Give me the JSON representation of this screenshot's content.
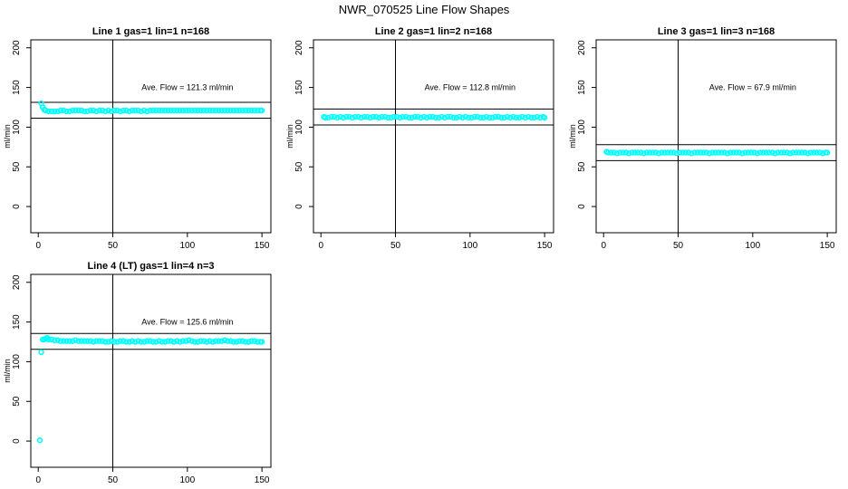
{
  "title": "NWR_070525  Line Flow Shapes",
  "colors": {
    "points": "#00ffff",
    "lines": "#000000"
  },
  "chart_data": [
    {
      "type": "scatter",
      "title": "Line 1 gas=1 lin=1 n=168",
      "ylabel": "ml/min",
      "xlim": [
        -5,
        156
      ],
      "ylim": [
        -33,
        210
      ],
      "xticks": [
        0,
        50,
        100,
        150
      ],
      "yticks": [
        0,
        50,
        100,
        150,
        200
      ],
      "annotation": "Ave. Flow =  121.3  ml/min",
      "hlines": [
        131.3,
        111.3
      ],
      "vline": 50,
      "x": [
        2,
        3,
        4,
        5,
        7,
        9,
        11,
        13,
        15,
        17,
        19,
        21,
        23,
        25,
        27,
        29,
        31,
        33,
        35,
        37,
        39,
        41,
        43,
        45,
        47,
        49,
        51,
        53,
        55,
        57,
        59,
        61,
        63,
        65,
        67,
        69,
        71,
        73,
        75,
        77,
        79,
        81,
        83,
        85,
        87,
        89,
        91,
        93,
        95,
        97,
        99,
        101,
        103,
        105,
        107,
        109,
        111,
        113,
        115,
        117,
        119,
        121,
        123,
        125,
        127,
        129,
        131,
        133,
        135,
        137,
        139,
        141,
        143,
        145,
        147,
        149,
        150
      ],
      "y": [
        130,
        125,
        122,
        121,
        120,
        120,
        120,
        120,
        121,
        121,
        120,
        120,
        121,
        121,
        121,
        121,
        120,
        120,
        121,
        121,
        120,
        121,
        121,
        120,
        121,
        120,
        121,
        121,
        120,
        121,
        121,
        120,
        121,
        121,
        121,
        120,
        121,
        120,
        121,
        121,
        121,
        121,
        121,
        121,
        121,
        121,
        121,
        121,
        121,
        121,
        121,
        121,
        121,
        121,
        121,
        121,
        121,
        121,
        121,
        121,
        121,
        121,
        121,
        121,
        121,
        121,
        121,
        121,
        121,
        121,
        121,
        121,
        121,
        121,
        121,
        121,
        121
      ]
    },
    {
      "type": "scatter",
      "title": "Line 2 gas=1 lin=2 n=168",
      "ylabel": "ml/min",
      "xlim": [
        -5,
        156
      ],
      "ylim": [
        -33,
        210
      ],
      "xticks": [
        0,
        50,
        100,
        150
      ],
      "yticks": [
        0,
        50,
        100,
        150,
        200
      ],
      "annotation": "Ave. Flow =  112.8  ml/min",
      "hlines": [
        122.8,
        102.8
      ],
      "vline": 50,
      "x": [
        2,
        3,
        5,
        7,
        9,
        11,
        13,
        15,
        17,
        19,
        21,
        23,
        25,
        27,
        29,
        31,
        33,
        35,
        37,
        39,
        41,
        43,
        45,
        47,
        49,
        51,
        53,
        55,
        57,
        59,
        61,
        63,
        65,
        67,
        69,
        71,
        73,
        75,
        77,
        79,
        81,
        83,
        85,
        87,
        89,
        91,
        93,
        95,
        97,
        99,
        101,
        103,
        105,
        107,
        109,
        111,
        113,
        115,
        117,
        119,
        121,
        123,
        125,
        127,
        129,
        131,
        133,
        135,
        137,
        139,
        141,
        143,
        145,
        147,
        149,
        150
      ],
      "y": [
        113,
        112,
        112,
        113,
        113,
        112,
        113,
        112,
        113,
        113,
        112,
        113,
        113,
        112,
        113,
        113,
        112,
        113,
        113,
        112,
        113,
        113,
        112,
        112,
        113,
        113,
        112,
        113,
        113,
        112,
        112,
        113,
        113,
        112,
        113,
        112,
        113,
        113,
        112,
        112,
        113,
        112,
        113,
        113,
        112,
        112,
        113,
        112,
        113,
        112,
        112,
        113,
        113,
        112,
        112,
        113,
        112,
        112,
        113,
        113,
        112,
        112,
        113,
        112,
        113,
        112,
        112,
        113,
        112,
        113,
        112,
        112,
        113,
        112,
        113,
        112
      ]
    },
    {
      "type": "scatter",
      "title": "Line 3 gas=1 lin=3 n=168",
      "ylabel": "ml/min",
      "xlim": [
        -5,
        156
      ],
      "ylim": [
        -33,
        210
      ],
      "xticks": [
        0,
        50,
        100,
        150
      ],
      "yticks": [
        0,
        50,
        100,
        150,
        200
      ],
      "annotation": "Ave. Flow =  67.9  ml/min",
      "hlines": [
        77.9,
        57.9
      ],
      "vline": 50,
      "x": [
        2,
        3,
        5,
        7,
        9,
        11,
        13,
        15,
        17,
        19,
        21,
        23,
        25,
        27,
        29,
        31,
        33,
        35,
        37,
        39,
        41,
        43,
        45,
        47,
        49,
        51,
        53,
        55,
        57,
        59,
        61,
        63,
        65,
        67,
        69,
        71,
        73,
        75,
        77,
        79,
        81,
        83,
        85,
        87,
        89,
        91,
        93,
        95,
        97,
        99,
        101,
        103,
        105,
        107,
        109,
        111,
        113,
        115,
        117,
        119,
        121,
        123,
        125,
        127,
        129,
        131,
        133,
        135,
        137,
        139,
        141,
        143,
        145,
        147,
        149,
        150
      ],
      "y": [
        69,
        68,
        68,
        68,
        67,
        68,
        68,
        68,
        67,
        68,
        68,
        68,
        68,
        67,
        68,
        68,
        68,
        68,
        67,
        68,
        68,
        68,
        68,
        68,
        67,
        68,
        68,
        68,
        68,
        67,
        68,
        68,
        68,
        68,
        68,
        67,
        68,
        68,
        68,
        68,
        68,
        67,
        68,
        68,
        68,
        68,
        67,
        68,
        68,
        68,
        68,
        67,
        68,
        68,
        68,
        68,
        68,
        67,
        68,
        68,
        68,
        68,
        67,
        68,
        68,
        68,
        68,
        68,
        67,
        68,
        68,
        68,
        68,
        67,
        68,
        68
      ]
    },
    {
      "type": "scatter",
      "title": "Line 4 (LT) gas=1 lin=4 n=3",
      "ylabel": "ml/min",
      "xlim": [
        -5,
        156
      ],
      "ylim": [
        -33,
        210
      ],
      "xticks": [
        0,
        50,
        100,
        150
      ],
      "yticks": [
        0,
        50,
        100,
        150,
        200
      ],
      "annotation": "Ave. Flow =  125.6  ml/min",
      "hlines": [
        135.6,
        115.6
      ],
      "vline": 50,
      "x": [
        1,
        2,
        3,
        4,
        5,
        6,
        7,
        9,
        11,
        13,
        15,
        17,
        19,
        21,
        23,
        25,
        27,
        29,
        31,
        33,
        35,
        37,
        39,
        41,
        43,
        45,
        47,
        49,
        51,
        53,
        55,
        57,
        59,
        61,
        63,
        65,
        67,
        69,
        71,
        73,
        75,
        77,
        79,
        81,
        83,
        85,
        87,
        89,
        91,
        93,
        95,
        97,
        99,
        101,
        103,
        105,
        107,
        109,
        111,
        113,
        115,
        117,
        119,
        121,
        123,
        125,
        127,
        129,
        131,
        133,
        135,
        137,
        139,
        141,
        143,
        145,
        147,
        149,
        150
      ],
      "y": [
        1,
        112,
        128,
        128,
        129,
        130,
        128,
        128,
        127,
        127,
        126,
        126,
        126,
        126,
        126,
        127,
        126,
        126,
        126,
        126,
        126,
        125,
        126,
        126,
        126,
        125,
        125,
        126,
        125,
        125,
        126,
        126,
        125,
        125,
        126,
        125,
        126,
        125,
        125,
        126,
        126,
        125,
        125,
        126,
        125,
        125,
        126,
        126,
        125,
        126,
        125,
        126,
        126,
        127,
        126,
        125,
        125,
        126,
        126,
        125,
        126,
        125,
        126,
        126,
        126,
        127,
        126,
        126,
        125,
        125,
        126,
        126,
        125,
        125,
        126,
        126,
        125,
        125,
        125
      ]
    }
  ]
}
